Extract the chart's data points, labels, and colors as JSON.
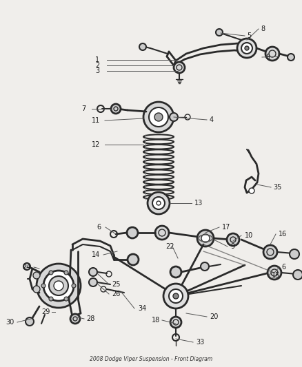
{
  "title": "2008 Dodge Viper Suspension - Front Diagram",
  "bg_color": "#f0eeeb",
  "line_color": "#2a2a2a",
  "label_color": "#1a1a1a",
  "fig_width": 4.38,
  "fig_height": 5.33,
  "dpi": 100
}
